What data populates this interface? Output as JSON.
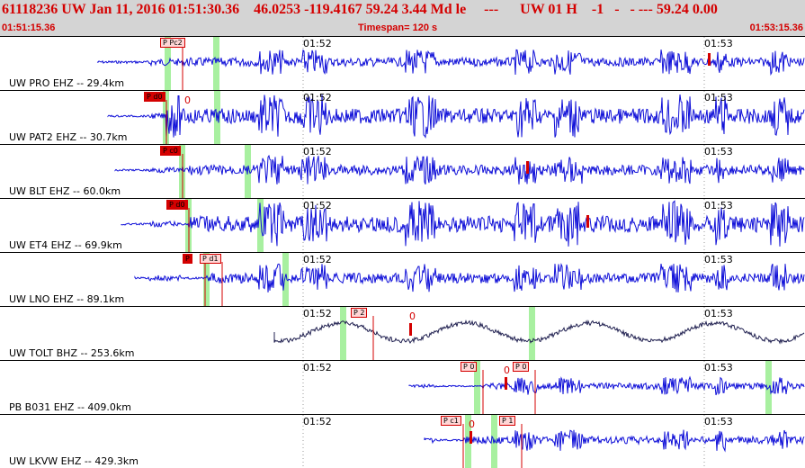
{
  "header": {
    "title": "61118236 UW Jan 11, 2016 01:51:30.36    46.0253 -119.4167 59.24 3.44 Md le     ---      UW 01 H    -1   -   - --- 59.24 0.00",
    "start_time": "01:51:15.36",
    "timespan": "Timespan= 120 s",
    "end_time": "01:53:15.36"
  },
  "colors": {
    "trace": "#1010d8",
    "trace_dark": "#202050",
    "pick": "#d40000",
    "green": "#a8f0a0"
  },
  "panels": [
    {
      "label": "UW PRO EHZ -- 29.4km",
      "ticks": [
        "01:52",
        "01:53"
      ],
      "picks": [
        {
          "text": "P Pc2",
          "style": "light"
        }
      ],
      "zero": "",
      "trace": "blue"
    },
    {
      "label": "UW PAT2 EHZ -- 30.7km",
      "ticks": [
        "01:52",
        "01:53"
      ],
      "picks": [
        {
          "text": "P d0",
          "style": "solid"
        }
      ],
      "zero": "0",
      "trace": "blue"
    },
    {
      "label": "UW BLT EHZ -- 60.0km",
      "ticks": [
        "01:52",
        "01:53"
      ],
      "picks": [
        {
          "text": "P c0",
          "style": "solid"
        }
      ],
      "zero": "",
      "trace": "blue"
    },
    {
      "label": "UW ET4 EHZ -- 69.9km",
      "ticks": [
        "01:52",
        "01:53"
      ],
      "picks": [
        {
          "text": "P d0",
          "style": "solid"
        }
      ],
      "zero": "",
      "trace": "blue"
    },
    {
      "label": "UW LNO EHZ -- 89.1km",
      "ticks": [
        "01:52",
        "01:53"
      ],
      "picks": [
        {
          "text": "P",
          "style": "solid"
        },
        {
          "text": "P d1",
          "style": "light"
        }
      ],
      "zero": "",
      "trace": "blue"
    },
    {
      "label": "UW TOLT BHZ -- 253.6km",
      "ticks": [
        "01:52",
        "01:53"
      ],
      "picks": [
        {
          "text": "P 2",
          "style": "light"
        }
      ],
      "zero": "0",
      "trace": "dark"
    },
    {
      "label": "PB B031 EHZ -- 409.0km",
      "ticks": [
        "01:52",
        "01:53"
      ],
      "picks": [
        {
          "text": "P 0",
          "style": "light"
        },
        {
          "text": "P 0",
          "style": "light"
        }
      ],
      "zero": "0",
      "trace": "blue"
    },
    {
      "label": "UW LKVW EHZ -- 429.3km",
      "ticks": [
        "01:52",
        "01:53"
      ],
      "picks": [
        {
          "text": "P c1",
          "style": "light"
        },
        {
          "text": "P 1",
          "style": "light"
        }
      ],
      "zero": "0",
      "trace": "blue"
    }
  ]
}
